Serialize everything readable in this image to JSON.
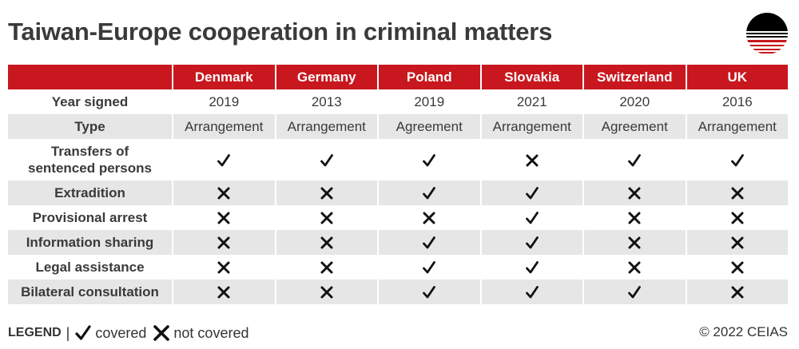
{
  "title": "Taiwan-Europe cooperation in criminal matters",
  "colors": {
    "header_bg": "#c8171e",
    "header_text": "#ffffff",
    "row_shade": "#e6e6e6",
    "text": "#333333"
  },
  "table": {
    "corner": "",
    "columns": [
      "Denmark",
      "Germany",
      "Poland",
      "Slovakia",
      "Switzerland",
      "UK"
    ],
    "rows": [
      {
        "label": "Year signed",
        "kind": "text",
        "values": [
          "2019",
          "2013",
          "2019",
          "2021",
          "2020",
          "2016"
        ]
      },
      {
        "label": "Type",
        "kind": "text",
        "values": [
          "Arrangement",
          "Arrangement",
          "Agreement",
          "Arrangement",
          "Agreement",
          "Arrangement"
        ]
      },
      {
        "label": "Transfers of sentenced persons",
        "kind": "mark",
        "values": [
          true,
          true,
          true,
          false,
          true,
          true
        ]
      },
      {
        "label": "Extradition",
        "kind": "mark",
        "values": [
          false,
          false,
          true,
          true,
          false,
          false
        ]
      },
      {
        "label": "Provisional arrest",
        "kind": "mark",
        "values": [
          false,
          false,
          false,
          true,
          false,
          false
        ]
      },
      {
        "label": "Information sharing",
        "kind": "mark",
        "values": [
          false,
          false,
          true,
          true,
          false,
          false
        ]
      },
      {
        "label": "Legal assistance",
        "kind": "mark",
        "values": [
          false,
          false,
          true,
          true,
          false,
          false
        ]
      },
      {
        "label": "Bilateral consultation",
        "kind": "mark",
        "values": [
          false,
          false,
          true,
          true,
          true,
          false
        ]
      }
    ]
  },
  "legend": {
    "title": "LEGEND",
    "separator": "|",
    "covered_label": "covered",
    "not_covered_label": "not covered",
    "covered_icon": "check-icon",
    "not_covered_icon": "cross-icon"
  },
  "copyright": "© 2022 CEIAS",
  "logo_icon": "striped-circle-logo"
}
